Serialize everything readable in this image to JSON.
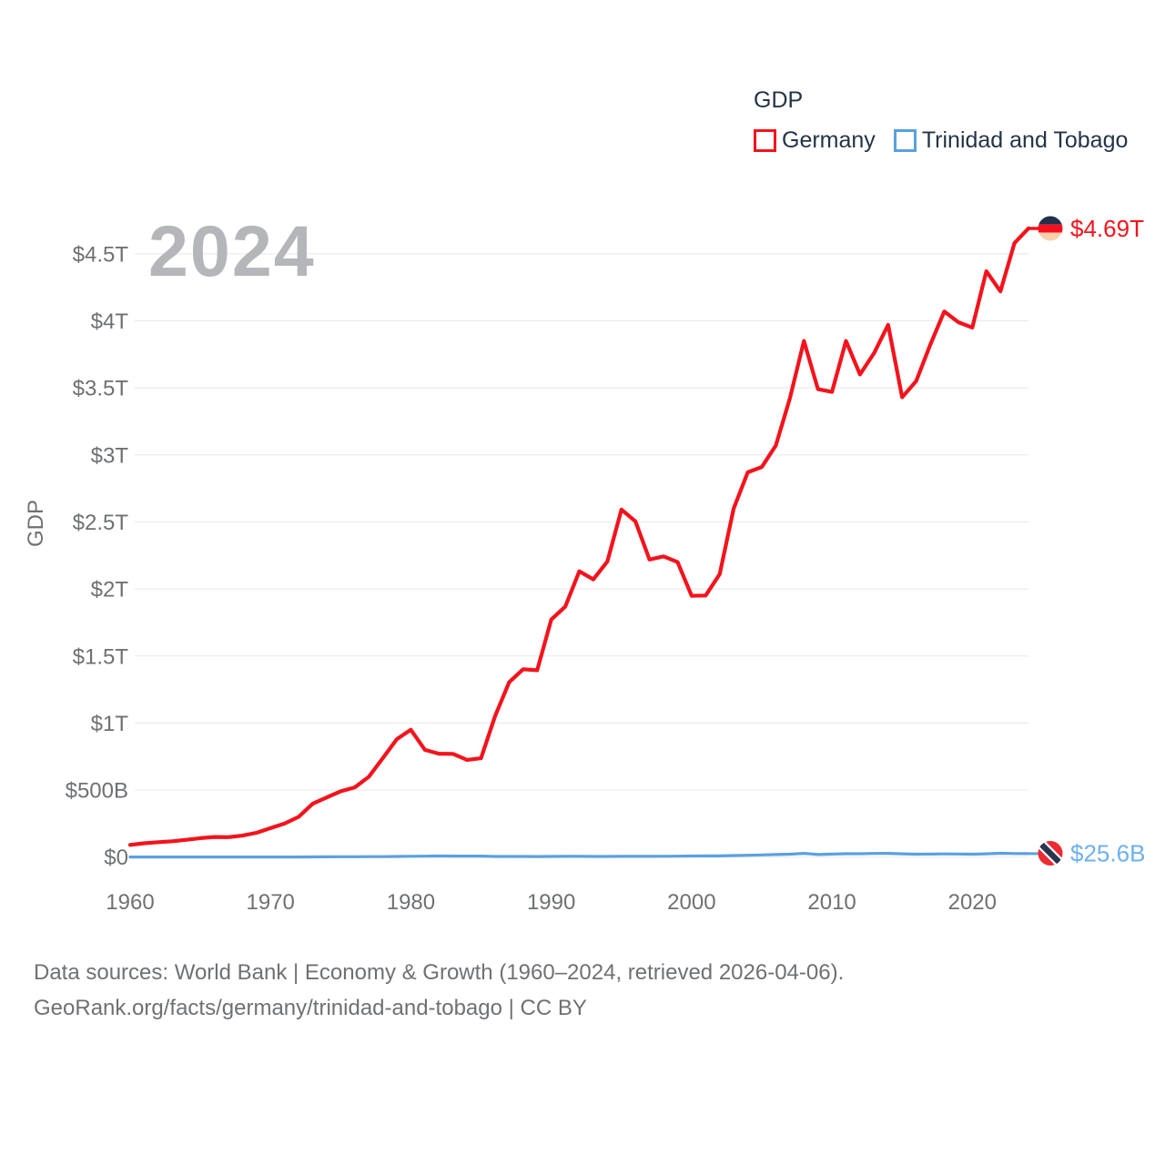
{
  "legend": {
    "title": "GDP",
    "items": [
      {
        "label": "Germany",
        "color": "#f4131c"
      },
      {
        "label": "Trinidad and Tobago",
        "color": "#5ba0e0"
      }
    ]
  },
  "watermark": "2024",
  "y_axis": {
    "title": "GDP",
    "ticks": [
      {
        "label": "$0",
        "value_T": 0
      },
      {
        "label": "$500B",
        "value_T": 0.5
      },
      {
        "label": "$1T",
        "value_T": 1
      },
      {
        "label": "$1.5T",
        "value_T": 1.5
      },
      {
        "label": "$2T",
        "value_T": 2
      },
      {
        "label": "$2.5T",
        "value_T": 2.5
      },
      {
        "label": "$3T",
        "value_T": 3
      },
      {
        "label": "$3.5T",
        "value_T": 3.5
      },
      {
        "label": "$4T",
        "value_T": 4
      },
      {
        "label": "$4.5T",
        "value_T": 4.5
      }
    ]
  },
  "x_axis": {
    "ticks": [
      {
        "label": "1960",
        "year": 1960
      },
      {
        "label": "1970",
        "year": 1970
      },
      {
        "label": "1980",
        "year": 1980
      },
      {
        "label": "1990",
        "year": 1990
      },
      {
        "label": "2000",
        "year": 2000
      },
      {
        "label": "2010",
        "year": 2010
      },
      {
        "label": "2020",
        "year": 2020
      }
    ]
  },
  "end_labels": {
    "germany": {
      "text": "$4.69T",
      "color": "#f4131c",
      "flag": "germany-flag"
    },
    "trinidad": {
      "text": "$25.6B",
      "color": "#6eb0ee",
      "flag": "trinidad-and-tobago-flag"
    }
  },
  "colors": {
    "germany_line": "#f4131c",
    "trinidad_line": "#5ba0e0",
    "text_dark": "#243447",
    "text_gray": "#6e7174",
    "watermark": "#b4b6b9",
    "gridline": "#e7e8ea",
    "germany_flag": {
      "black_band": "#22304a",
      "red_band": "#f6111f",
      "gold_band": "#fcd2ac"
    },
    "trinidad_flag": {
      "red": "#ee2a31",
      "stripe": "#2b344f",
      "stripe_border": "#ffffff"
    }
  },
  "footer": {
    "line1": "Data sources: World Bank | Economy & Growth (1960–2024, retrieved 2026-04-06).",
    "line2": "GeoRank.org/facts/germany/trinidad-and-tobago | CC BY"
  },
  "chart_data": {
    "type": "line",
    "title": "GDP",
    "ylabel": "GDP",
    "xlim": [
      1960,
      2024
    ],
    "ylim_T": [
      0,
      4.75
    ],
    "grid": "horizontal",
    "legend_position": "top-right",
    "x": [
      1960,
      1961,
      1962,
      1963,
      1964,
      1965,
      1966,
      1967,
      1968,
      1969,
      1970,
      1971,
      1972,
      1973,
      1974,
      1975,
      1976,
      1977,
      1978,
      1979,
      1980,
      1981,
      1982,
      1983,
      1984,
      1985,
      1986,
      1987,
      1988,
      1989,
      1990,
      1991,
      1992,
      1993,
      1994,
      1995,
      1996,
      1997,
      1998,
      1999,
      2000,
      2001,
      2002,
      2003,
      2004,
      2005,
      2006,
      2007,
      2008,
      2009,
      2010,
      2011,
      2012,
      2013,
      2014,
      2015,
      2016,
      2017,
      2018,
      2019,
      2020,
      2021,
      2022,
      2023,
      2024
    ],
    "series": [
      {
        "name": "Germany",
        "color": "#f4131c",
        "unit": "trillion USD",
        "values_T": [
          0.091,
          0.103,
          0.111,
          0.118,
          0.129,
          0.141,
          0.15,
          0.149,
          0.16,
          0.181,
          0.216,
          0.25,
          0.3,
          0.398,
          0.445,
          0.491,
          0.52,
          0.599,
          0.738,
          0.88,
          0.95,
          0.8,
          0.771,
          0.77,
          0.725,
          0.737,
          1.052,
          1.304,
          1.401,
          1.394,
          1.772,
          1.869,
          2.132,
          2.071,
          2.205,
          2.592,
          2.504,
          2.219,
          2.243,
          2.2,
          1.949,
          1.951,
          2.11,
          2.6,
          2.87,
          2.91,
          3.07,
          3.42,
          3.85,
          3.49,
          3.47,
          3.85,
          3.6,
          3.76,
          3.97,
          3.43,
          3.55,
          3.82,
          4.07,
          3.99,
          3.95,
          4.37,
          4.22,
          4.58,
          4.69
        ],
        "end_value_label": "$4.69T"
      },
      {
        "name": "Trinidad and Tobago",
        "color": "#5ba0e0",
        "unit": "billion USD",
        "values_B": [
          0.54,
          0.58,
          0.61,
          0.65,
          0.68,
          0.7,
          0.72,
          0.76,
          0.79,
          0.8,
          0.82,
          0.9,
          1.0,
          1.31,
          1.95,
          2.44,
          2.5,
          3.14,
          3.56,
          4.6,
          6.24,
          6.99,
          8.14,
          7.73,
          7.77,
          7.35,
          4.79,
          4.8,
          4.48,
          4.32,
          5.07,
          5.31,
          5.44,
          4.57,
          4.99,
          5.33,
          5.76,
          5.74,
          6.05,
          6.8,
          8.15,
          8.83,
          9.01,
          11.31,
          13.28,
          15.98,
          19.0,
          21.6,
          27.9,
          19.2,
          22.2,
          25.4,
          25.2,
          27.2,
          28.1,
          24.6,
          21.5,
          22.1,
          23.8,
          23.2,
          21.6,
          24.5,
          28.5,
          26.8,
          25.6
        ],
        "end_value_label": "$25.6B"
      }
    ]
  }
}
